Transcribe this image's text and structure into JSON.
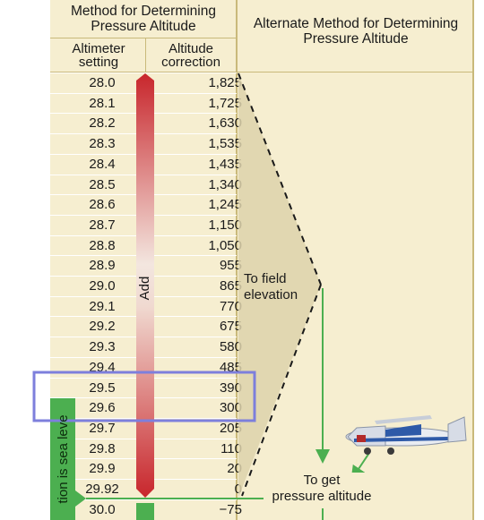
{
  "header": {
    "left_title": [
      "Method for Determining",
      "Pressure Altitude"
    ],
    "right_title": [
      "Alternate Method for Determining",
      "Pressure Altitude"
    ],
    "col_altimeter": [
      "Altimeter",
      "setting"
    ],
    "col_correction": [
      "Altitude",
      "correction"
    ]
  },
  "table": {
    "rows": [
      {
        "setting": "28.0",
        "correction": "1,825"
      },
      {
        "setting": "28.1",
        "correction": "1,725"
      },
      {
        "setting": "28.2",
        "correction": "1,630"
      },
      {
        "setting": "28.3",
        "correction": "1,535"
      },
      {
        "setting": "28.4",
        "correction": "1,435"
      },
      {
        "setting": "28.5",
        "correction": "1,340"
      },
      {
        "setting": "28.6",
        "correction": "1,245"
      },
      {
        "setting": "28.7",
        "correction": "1,150"
      },
      {
        "setting": "28.8",
        "correction": "1,050"
      },
      {
        "setting": "28.9",
        "correction": "955"
      },
      {
        "setting": "29.0",
        "correction": "865"
      },
      {
        "setting": "29.1",
        "correction": "770"
      },
      {
        "setting": "29.2",
        "correction": "675"
      },
      {
        "setting": "29.3",
        "correction": "580"
      },
      {
        "setting": "29.4",
        "correction": "485"
      },
      {
        "setting": "29.5",
        "correction": "390"
      },
      {
        "setting": "29.6",
        "correction": "300"
      },
      {
        "setting": "29.7",
        "correction": "205"
      },
      {
        "setting": "29.8",
        "correction": "110"
      },
      {
        "setting": "29.9",
        "correction": "20"
      },
      {
        "setting": "29.92",
        "correction": "0"
      },
      {
        "setting": "30.0",
        "correction": "−75"
      }
    ],
    "highlighted_settings": [
      "29.5",
      "29.6"
    ]
  },
  "bar": {
    "add_label": "Add",
    "green_label": "tion is sea leve"
  },
  "diagram": {
    "to_field_elevation": [
      "To field",
      "elevation"
    ],
    "to_get_pressure_altitude": [
      "To get",
      "pressure altitude"
    ]
  },
  "colors": {
    "panel_bg": "#f6eed0",
    "bar_red": "#c8262c",
    "bar_green": "#4caf50",
    "arrow_green": "#4caf50",
    "highlight_box": "#7d7fdc",
    "wedge": "#ddd2ab"
  }
}
